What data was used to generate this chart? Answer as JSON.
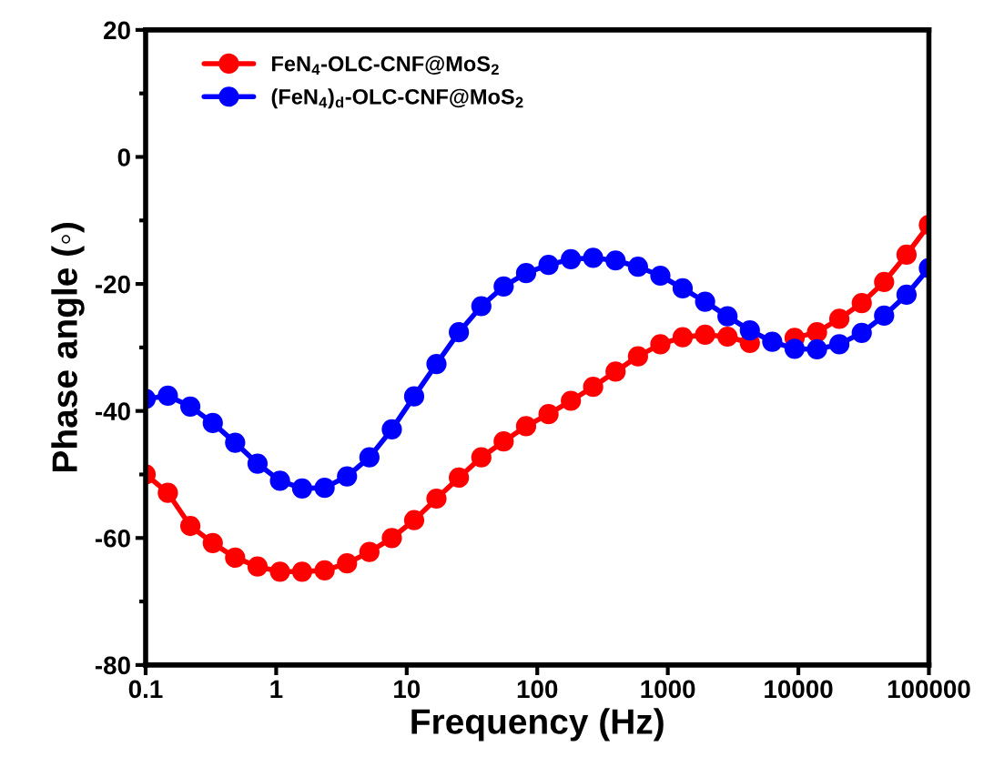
{
  "chart_data": {
    "type": "line",
    "xlabel": "Frequency (Hz)",
    "ylabel": "Phase angle (◦)",
    "log": "x",
    "marker": "circle",
    "line_style": "solid",
    "legend": "top left",
    "grid": false,
    "x": [
      0.1,
      0.148,
      0.22,
      0.327,
      0.485,
      0.72,
      1.07,
      1.58,
      2.35,
      3.49,
      5.18,
      7.69,
      11.4,
      16.9,
      25.1,
      37.3,
      55.3,
      82.1,
      122,
      181,
      268,
      398,
      591,
      877,
      1300,
      1931,
      2865,
      4252,
      6310,
      9363,
      13900,
      20600,
      30600,
      45400,
      67400,
      100000
    ],
    "xlim": [
      0.1,
      100000
    ],
    "xticks": [
      0.1,
      1,
      10,
      100,
      1000,
      10000,
      100000
    ],
    "ylim": [
      -80,
      20
    ],
    "yticks": [
      -80,
      {
        "value": -70,
        "label": null
      },
      -60,
      {
        "value": -50,
        "label": null
      },
      -40,
      {
        "value": -30,
        "label": null
      },
      -20,
      {
        "value": -10,
        "label": null
      },
      0,
      {
        "value": 10,
        "label": null
      },
      20
    ],
    "series": [
      {
        "name": "FeN$_{4}$-OLC-CNF@MoS$_{2}$",
        "color": "#ff0000",
        "values": [
          -50.0,
          -52.9,
          -58.1,
          -60.8,
          -63.1,
          -64.5,
          -65.3,
          -65.3,
          -65.1,
          -64.0,
          -62.2,
          -60.0,
          -57.2,
          -53.8,
          -50.5,
          -47.3,
          -44.8,
          -42.4,
          -40.5,
          -38.4,
          -36.2,
          -33.8,
          -31.4,
          -29.5,
          -28.4,
          -28.0,
          -28.3,
          -29.3,
          null,
          -28.5,
          -27.6,
          -25.5,
          -23.0,
          -19.7,
          -15.4,
          -10.7
        ]
      },
      {
        "name": "(FeN$_{4}$)$_{d}$-OLC-CNF@MoS$_{2}$",
        "color": "#0000ff",
        "values": [
          -38.1,
          -37.6,
          -39.3,
          -41.9,
          -45.0,
          -48.3,
          -51.0,
          -52.2,
          -52.1,
          -50.3,
          -47.3,
          -42.9,
          -37.7,
          -32.6,
          -27.6,
          -23.5,
          -20.4,
          -18.3,
          -17.0,
          -16.1,
          -15.9,
          -16.3,
          -17.3,
          -18.7,
          -20.7,
          -22.8,
          -25.1,
          -27.3,
          -29.1,
          -30.2,
          -30.3,
          -29.5,
          -27.7,
          -25.0,
          -21.7,
          -17.5
        ]
      }
    ]
  }
}
